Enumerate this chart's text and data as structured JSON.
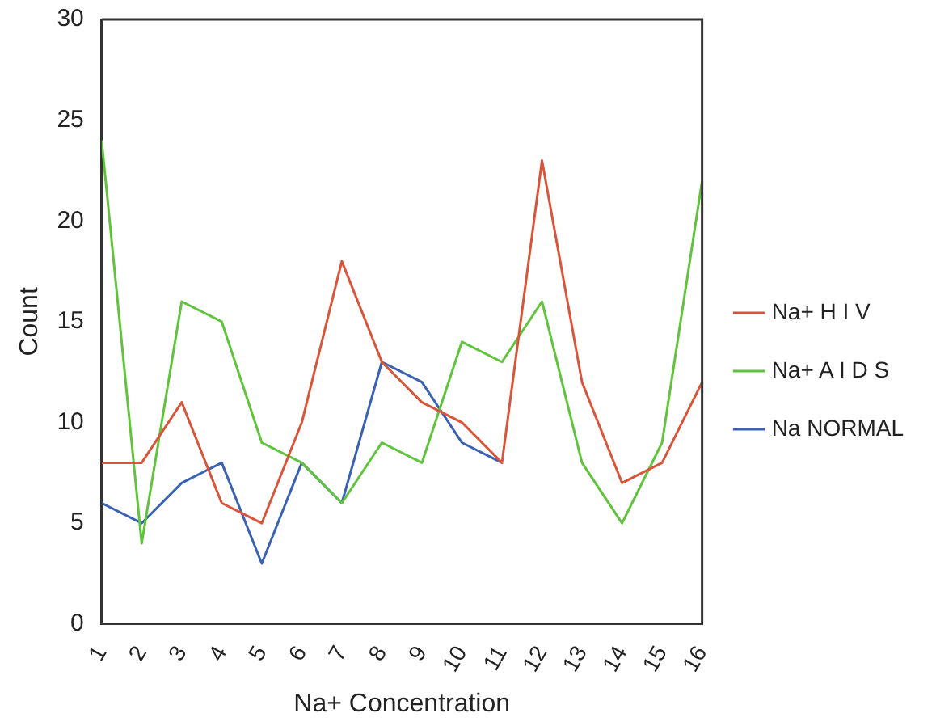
{
  "chart_data": {
    "type": "line",
    "xlabel": "Na+ Concentration",
    "ylabel": "Count",
    "x": [
      1,
      2,
      3,
      4,
      5,
      6,
      7,
      8,
      9,
      10,
      11,
      12,
      13,
      14,
      15,
      16
    ],
    "xlim": [
      1,
      16
    ],
    "xticks": [
      1,
      2,
      3,
      4,
      5,
      6,
      7,
      8,
      9,
      10,
      11,
      12,
      13,
      14,
      15,
      16
    ],
    "ylim": [
      0,
      30
    ],
    "yticks": [
      0,
      5,
      10,
      15,
      20,
      25,
      30
    ],
    "grid": false,
    "legend": "right",
    "marker": "none",
    "line_style": "solid",
    "series": [
      {
        "name": "Na+ H I V",
        "color": "#d9553a",
        "values": [
          8,
          8,
          11,
          6,
          5,
          10,
          18,
          13,
          11,
          10,
          8,
          23,
          12,
          7,
          8,
          12
        ]
      },
      {
        "name": "Na+ A I D S",
        "color": "#5fc43c",
        "values": [
          24,
          4,
          16,
          15,
          9,
          8,
          6,
          9,
          8,
          14,
          13,
          16,
          8,
          5,
          9,
          22
        ]
      },
      {
        "name": "Na NORMAL",
        "color": "#3a62b4",
        "values": [
          6,
          5,
          7,
          8,
          3,
          8,
          6,
          13,
          12,
          9,
          8,
          null,
          null,
          null,
          null,
          null
        ]
      }
    ]
  }
}
